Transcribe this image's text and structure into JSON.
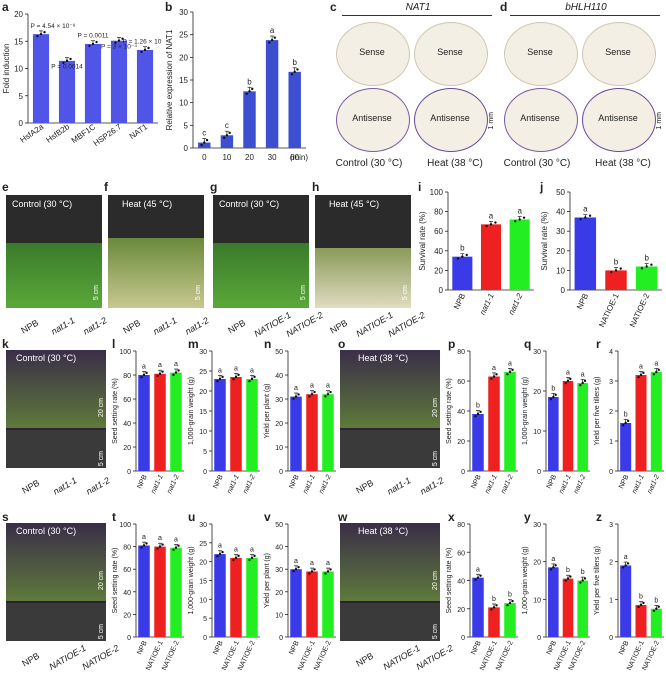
{
  "colors": {
    "npb": "#3a3ae8",
    "mut1": "#ef2020",
    "mut2": "#22ee22",
    "bar_a": "#5055e8",
    "bar_b": "#3b4fd0"
  },
  "panel_labels": {
    "a": "a",
    "b": "b",
    "c": "c",
    "d": "d",
    "e": "e",
    "f": "f",
    "g": "g",
    "h": "h",
    "i": "i",
    "j": "j",
    "k": "k",
    "l": "l",
    "m": "m",
    "n": "n",
    "o": "o",
    "p": "p",
    "q": "q",
    "r": "r",
    "s": "s",
    "t": "t",
    "u": "u",
    "v": "v",
    "w": "w",
    "x": "x",
    "y": "y",
    "z": "z"
  },
  "insitu": {
    "c": {
      "gene": "NAT1",
      "sense": "Sense",
      "antisense": "Antisense",
      "ctrl": "Control (30 °C)",
      "heat": "Heat (38 °C)",
      "scale": "1 mm"
    },
    "d": {
      "gene": "bHLH110",
      "sense": "Sense",
      "antisense": "Antisense",
      "ctrl": "Control (30 °C)",
      "heat": "Heat (38 °C)",
      "scale": "1 mm"
    }
  },
  "photos": {
    "e": {
      "title": "Control (30 °C)",
      "scale": "5 cm",
      "genotypes": [
        "NPB",
        "nat1-1",
        "nat1-2"
      ]
    },
    "f": {
      "title": "Heat (45 °C)",
      "scale": "5 cm",
      "genotypes": [
        "NPB",
        "nat1-1",
        "nat1-2"
      ]
    },
    "g": {
      "title": "Control (30 °C)",
      "scale": "5 cm",
      "genotypes": [
        "NPB",
        "NATIOE-1",
        "NATIOE-2"
      ]
    },
    "h": {
      "title": "Heat (45 °C)",
      "scale": "5 cm",
      "genotypes": [
        "NPB",
        "NATIOE-1",
        "NATIOE-2"
      ]
    },
    "k": {
      "title": "Control (30 °C)",
      "scale1": "20 cm",
      "scale2": "5 cm",
      "genotypes": [
        "NPB",
        "nat1-1",
        "nat1-2"
      ]
    },
    "o": {
      "title": "Heat (38 °C)",
      "scale1": "20 cm",
      "scale2": "5 cm",
      "genotypes": [
        "NPB",
        "nat1-1",
        "nat1-2"
      ]
    },
    "s": {
      "title": "Control (30 °C)",
      "scale1": "20 cm",
      "scale2": "5 cm",
      "genotypes": [
        "NPB",
        "NATIOE-1",
        "NATIOE-2"
      ]
    },
    "w": {
      "title": "Heat (38 °C)",
      "scale1": "20 cm",
      "scale2": "5 cm",
      "genotypes": [
        "NPB",
        "NATIOE-1",
        "NATIOE-2"
      ]
    }
  },
  "chart_data": [
    {
      "id": "a",
      "type": "bar",
      "categories": [
        "HsfA2a",
        "HsfB2b",
        "MBF1C",
        "HSP26.7",
        "NAT1"
      ],
      "values": [
        16.3,
        11.4,
        14.5,
        15.1,
        13.4
      ],
      "ylabel": "Fold induction",
      "ylim": [
        0,
        20
      ],
      "yticks": [
        0,
        5,
        10,
        15,
        20
      ],
      "annotations": [
        "P = 4.54 × 10⁻⁸",
        "P = 0.0014",
        "P = 0.0011",
        "P = 3 × 10⁻⁴",
        "P = 1.26 × 10⁻⁵"
      ]
    },
    {
      "id": "b",
      "type": "bar",
      "categories": [
        "0",
        "10",
        "20",
        "30",
        "60"
      ],
      "values": [
        1.2,
        2.8,
        12.5,
        23.8,
        16.8
      ],
      "ylabel": "Relative expression of NAT1",
      "xlabel": "(min)",
      "ylim": [
        0,
        30
      ],
      "yticks": [
        0,
        5,
        10,
        15,
        20,
        25,
        30
      ],
      "letters": [
        "c",
        "c",
        "b",
        "a",
        "b"
      ]
    },
    {
      "id": "i",
      "type": "bar",
      "categories": [
        "NPB",
        "nat1-1",
        "nat1-2"
      ],
      "values": [
        34,
        67,
        72
      ],
      "ylabel": "Survival rate (%)",
      "ylim": [
        0,
        100
      ],
      "yticks": [
        0,
        20,
        40,
        60,
        80,
        100
      ],
      "letters": [
        "b",
        "a",
        "a"
      ]
    },
    {
      "id": "j",
      "type": "bar",
      "categories": [
        "NPB",
        "NATIOE-1",
        "NATIOE-2"
      ],
      "values": [
        37,
        10,
        12
      ],
      "ylabel": "Survival rate (%)",
      "ylim": [
        0,
        50
      ],
      "yticks": [
        0,
        10,
        20,
        30,
        40,
        50
      ],
      "letters": [
        "a",
        "b",
        "b"
      ]
    },
    {
      "id": "l",
      "type": "bar",
      "categories": [
        "NPB",
        "nat1-1",
        "nat1-2"
      ],
      "values": [
        80,
        81,
        82
      ],
      "ylabel": "Seed setting rate (%)",
      "ylim": [
        0,
        100
      ],
      "yticks": [
        0,
        20,
        40,
        60,
        80,
        100
      ],
      "letters": [
        "a",
        "a",
        "a"
      ]
    },
    {
      "id": "m",
      "type": "bar",
      "categories": [
        "NPB",
        "nat1-1",
        "nat1-2"
      ],
      "values": [
        23,
        23.5,
        23
      ],
      "ylabel": "1,000-grain weight (g)",
      "ylim": [
        0,
        30
      ],
      "yticks": [
        0,
        5,
        10,
        15,
        20,
        25,
        30
      ],
      "letters": [
        "a",
        "a",
        "a"
      ]
    },
    {
      "id": "n",
      "type": "bar",
      "categories": [
        "NPB",
        "nat1-1",
        "nat1-2"
      ],
      "values": [
        31,
        32,
        32
      ],
      "ylabel": "Yield per plant (g)",
      "ylim": [
        0,
        50
      ],
      "yticks": [
        0,
        10,
        20,
        30,
        40,
        50
      ],
      "letters": [
        "a",
        "a",
        "a"
      ]
    },
    {
      "id": "p",
      "type": "bar",
      "categories": [
        "NPB",
        "nat1-1",
        "nat1-2"
      ],
      "values": [
        38,
        63,
        66
      ],
      "ylabel": "Seed setting rate (%)",
      "ylim": [
        0,
        80
      ],
      "yticks": [
        0,
        20,
        40,
        60,
        80
      ],
      "letters": [
        "b",
        "a",
        "a"
      ]
    },
    {
      "id": "q",
      "type": "bar",
      "categories": [
        "NPB",
        "nat1-1",
        "nat1-2"
      ],
      "values": [
        18.5,
        22.5,
        22
      ],
      "ylabel": "1,000-grain weight (g)",
      "ylim": [
        0,
        30
      ],
      "yticks": [
        0,
        10,
        20,
        30
      ],
      "letters": [
        "b",
        "a",
        "a"
      ]
    },
    {
      "id": "r",
      "type": "bar",
      "categories": [
        "NPB",
        "nat1-1",
        "nat1-2"
      ],
      "values": [
        1.6,
        3.2,
        3.3
      ],
      "ylabel": "Yield per five tillers (g)",
      "ylim": [
        0,
        4
      ],
      "yticks": [
        0,
        1,
        2,
        3,
        4
      ],
      "letters": [
        "b",
        "a",
        "a"
      ]
    },
    {
      "id": "t",
      "type": "bar",
      "categories": [
        "NPB",
        "NATIOE-1",
        "NATIOE-2"
      ],
      "values": [
        81,
        80,
        79
      ],
      "ylabel": "Seed setting rate (%)",
      "ylim": [
        0,
        100
      ],
      "yticks": [
        0,
        20,
        40,
        60,
        80,
        100
      ],
      "letters": [
        "a",
        "a",
        "a"
      ]
    },
    {
      "id": "u",
      "type": "bar",
      "categories": [
        "NPB",
        "NATIOE-1",
        "NATIOE-2"
      ],
      "values": [
        22,
        21,
        21
      ],
      "ylabel": "1,000-grain weight (g)",
      "ylim": [
        0,
        30
      ],
      "yticks": [
        0,
        5,
        10,
        15,
        20,
        25,
        30
      ],
      "letters": [
        "a",
        "a",
        "a"
      ]
    },
    {
      "id": "v",
      "type": "bar",
      "categories": [
        "NPB",
        "NATIOE-1",
        "NATIOE-2"
      ],
      "values": [
        30,
        29,
        29
      ],
      "ylabel": "Yield per plant (g)",
      "ylim": [
        0,
        50
      ],
      "yticks": [
        0,
        10,
        20,
        30,
        40,
        50
      ],
      "letters": [
        "a",
        "a",
        "a"
      ]
    },
    {
      "id": "x",
      "type": "bar",
      "categories": [
        "NPB",
        "NATIOE-1",
        "NATIOE-2"
      ],
      "values": [
        42,
        21,
        24
      ],
      "ylabel": "Seed setting rate (%)",
      "ylim": [
        0,
        80
      ],
      "yticks": [
        0,
        20,
        40,
        60,
        80
      ],
      "letters": [
        "a",
        "b",
        "b"
      ]
    },
    {
      "id": "y",
      "type": "bar",
      "categories": [
        "NPB",
        "NATIOE-1",
        "NATIOE-2"
      ],
      "values": [
        18.5,
        15.5,
        15
      ],
      "ylabel": "1,000-grain weight (g)",
      "ylim": [
        0,
        30
      ],
      "yticks": [
        0,
        10,
        20,
        30
      ],
      "letters": [
        "a",
        "b",
        "b"
      ]
    },
    {
      "id": "z",
      "type": "bar",
      "categories": [
        "NPB",
        "NATIOE-1",
        "NATIOE-2"
      ],
      "values": [
        1.9,
        0.85,
        0.75
      ],
      "ylabel": "Yield per five tillers (g)",
      "ylim": [
        0,
        3
      ],
      "yticks": [
        0,
        1,
        2,
        3
      ],
      "letters": [
        "a",
        "b",
        "b"
      ]
    }
  ]
}
